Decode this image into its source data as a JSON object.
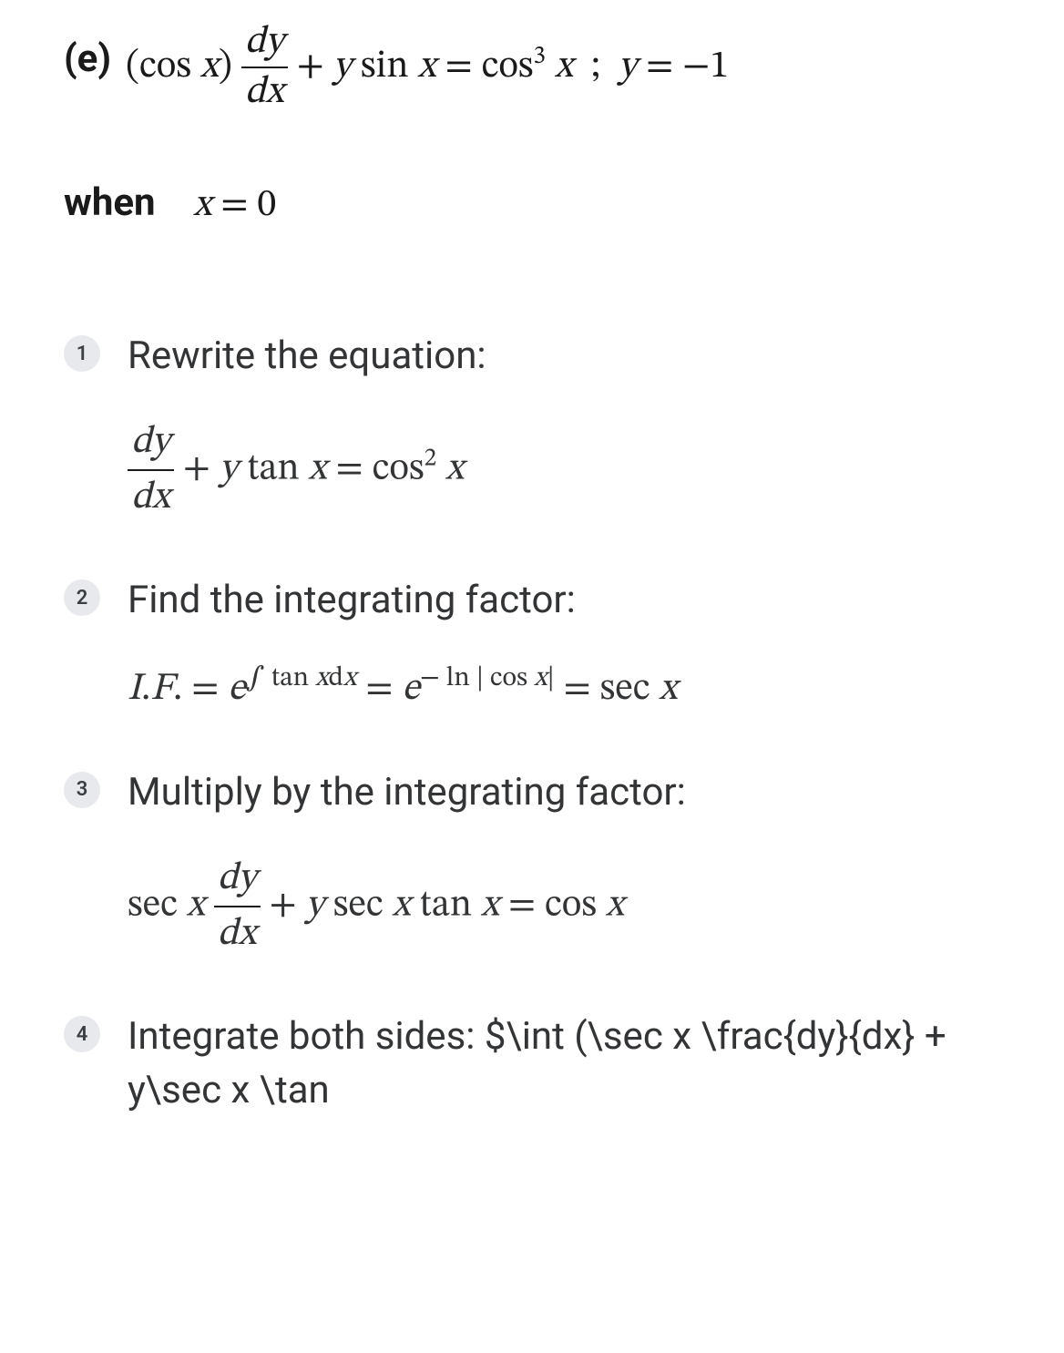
{
  "problem": {
    "label": "(e)",
    "equation_html": "(cos <span class='ital'>x</span>) <span class='frac'><span class='num'>d<span class=\"ital\">y</span></span><span class='den'>d<span class=\"ital\">x</span></span></span> + <span class='ital'>y</span> sin <span class='ital'>x</span> = cos<sup>3</sup> <span class='ital'>x</span>&nbsp;&nbsp;;&nbsp;&nbsp;<span class='ital'>y</span> = −1"
  },
  "when": {
    "label": "when",
    "math_html": "<span class='ital'>x</span> = 0"
  },
  "steps": [
    {
      "num": "1",
      "title": "Rewrite the equation:",
      "math_html": "<span class='frac'><span class='num'>d<span class=\"ital\">y</span></span><span class='den'>d<span class=\"ital\">x</span></span></span> + <span class='ital'>y</span> tan <span class='ital'>x</span> = cos<sup>2</sup> <span class='ital'>x</span>"
    },
    {
      "num": "2",
      "title": "Find the integrating factor:",
      "math_html": "<span class='ital'>I</span>.<span class='ital'>F</span>. = <span class='ital'>e</span><span class='exp'><span class='int'>∫</span> <span class='rom'>tan</span> <span class='ital'>x</span>d<span class='ital'>x</span></span> = <span class='ital'>e</span><span class='exp'>− <span class='rom'>ln</span> | <span class='rom'>cos</span> <span class='ital'>x</span>|</span> = sec <span class='ital'>x</span>"
    },
    {
      "num": "3",
      "title": "Multiply by the integrating factor:",
      "math_html": "sec <span class='ital'>x</span> <span class='frac'><span class='num'>d<span class=\"ital\">y</span></span><span class='den'>d<span class=\"ital\">x</span></span></span> + <span class='ital'>y</span> sec <span class='ital'>x</span> tan <span class='ital'>x</span> = cos <span class='ital'>x</span>"
    },
    {
      "num": "4",
      "title_html": "Integrate both sides: $\\int (\\sec x \\frac{dy}{dx} + y\\sec x \\tan",
      "math_html": ""
    }
  ],
  "colors": {
    "text": "#1a1a1a",
    "step_text": "#323436",
    "badge_bg": "#e7e9ec",
    "badge_fg": "#3b3f44",
    "background": "#ffffff"
  }
}
